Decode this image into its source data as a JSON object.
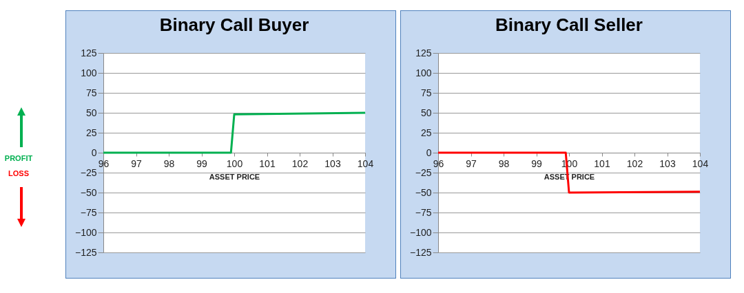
{
  "chart_data": [
    {
      "type": "line",
      "title": "Binary Call Buyer",
      "xlabel": "ASSET PRICE",
      "annotations": [
        "PROFIT",
        "LOSS"
      ],
      "series": [
        {
          "color": "#00b050",
          "x": [
            96,
            99.9,
            100,
            104
          ],
          "values": [
            0,
            0,
            48,
            50
          ]
        }
      ],
      "xlim": [
        96,
        104
      ],
      "xticks": [
        96,
        97,
        98,
        99,
        100,
        101,
        102,
        103,
        104
      ],
      "ylim": [
        -125,
        125
      ],
      "yticks": [
        -125,
        -100,
        -75,
        -50,
        -25,
        0,
        25,
        50,
        75,
        100,
        125
      ],
      "grid": "y"
    },
    {
      "type": "line",
      "title": "Binary Call Seller",
      "xlabel": "ASSET PRICE",
      "series": [
        {
          "color": "#ff0000",
          "x": [
            96,
            99.9,
            100,
            104
          ],
          "values": [
            0,
            0,
            -50,
            -49
          ]
        }
      ],
      "xlim": [
        96,
        104
      ],
      "xticks": [
        96,
        97,
        98,
        99,
        100,
        101,
        102,
        103,
        104
      ],
      "ylim": [
        -125,
        125
      ],
      "yticks": [
        -125,
        -100,
        -75,
        -50,
        -25,
        0,
        25,
        50,
        75,
        100,
        125
      ],
      "grid": "y"
    }
  ]
}
